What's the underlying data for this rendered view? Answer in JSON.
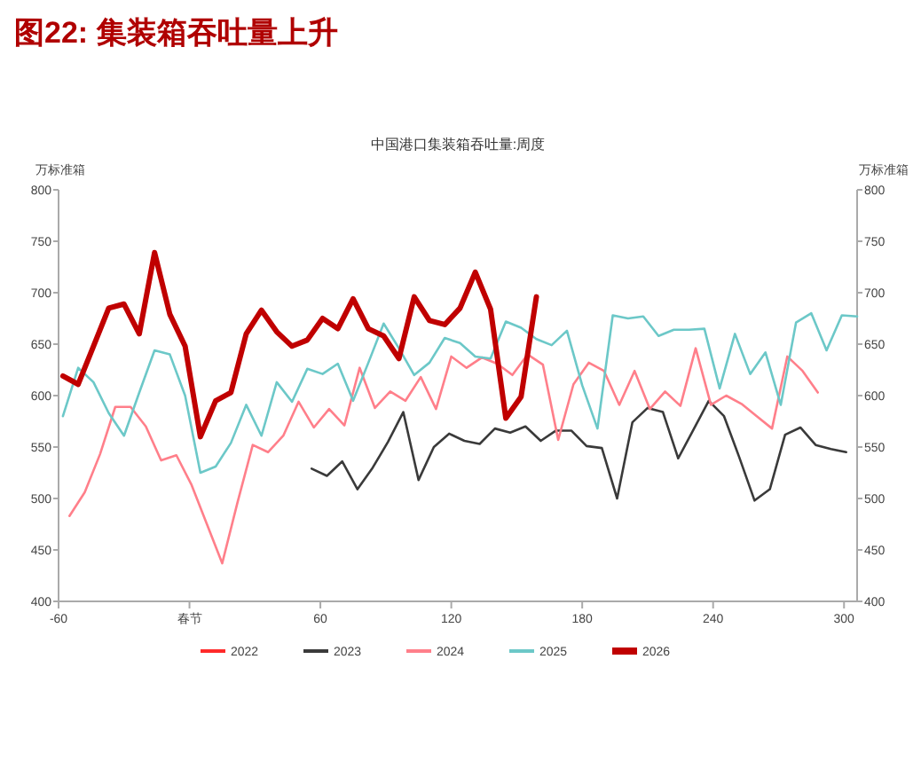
{
  "chart_data": {
    "type": "line",
    "title": "图22:  集装箱吞吐量上升",
    "subtitle": "中国港口集装箱吞吐量:周度",
    "ylabel": "万标准箱",
    "y2label": "万标准箱",
    "xlim": [
      -60,
      306
    ],
    "xticks": [
      -60,
      {
        "value": 0,
        "label": "春节"
      },
      60,
      120,
      180,
      240,
      300
    ],
    "ylim": [
      400,
      800
    ],
    "yticks": [
      400,
      450,
      500,
      550,
      600,
      650,
      700,
      750,
      800
    ],
    "y2lim": [
      400,
      800
    ],
    "y2ticks": [
      400,
      450,
      500,
      550,
      600,
      650,
      700,
      750,
      800
    ],
    "grid": false,
    "legend": "bottom",
    "marker": "none",
    "line_style": "solid",
    "series": [
      {
        "name": "2022",
        "color": "#ff2a2a"
      },
      {
        "name": "2023",
        "color": "#3a3a3a",
        "x": [
          56,
          63,
          70,
          77,
          84,
          91,
          98,
          105,
          112,
          119,
          126,
          133,
          140,
          147,
          154,
          161,
          168,
          175,
          182,
          189,
          196,
          203,
          210,
          217,
          224,
          231,
          238,
          245,
          252,
          259,
          266,
          273,
          280,
          287,
          294,
          301
        ],
        "values": [
          529,
          522,
          536,
          509,
          530,
          555,
          584,
          518,
          550,
          563,
          556,
          553,
          568,
          564,
          570,
          556,
          566,
          566,
          551,
          549,
          500,
          574,
          588,
          584,
          539,
          567,
          595,
          580,
          540,
          498,
          509,
          562,
          569,
          552,
          548,
          545
        ]
      },
      {
        "name": "2024",
        "color": "#ff7f8a",
        "x": [
          -55,
          -48,
          -41,
          -34,
          -27,
          -20,
          -13,
          -6,
          1,
          8,
          15,
          22,
          29,
          36,
          43,
          50,
          57,
          64,
          71,
          78,
          85,
          92,
          99,
          106,
          113,
          120,
          127,
          134,
          141,
          148,
          155,
          162,
          169,
          176,
          183,
          190,
          197,
          204,
          211,
          218,
          225,
          232,
          239,
          246,
          253,
          260,
          267,
          274,
          281,
          288
        ],
        "values": [
          483,
          506,
          543,
          589,
          589,
          570,
          537,
          542,
          513,
          475,
          437,
          496,
          552,
          545,
          561,
          594,
          569,
          587,
          571,
          627,
          588,
          604,
          595,
          618,
          587,
          638,
          627,
          637,
          631,
          620,
          640,
          630,
          557,
          611,
          632,
          624,
          591,
          624,
          587,
          604,
          590,
          646,
          591,
          600,
          592,
          580,
          568,
          638,
          624,
          603
        ]
      },
      {
        "name": "2025",
        "color": "#6cc8c8",
        "x": [
          -58,
          -51,
          -44,
          -37,
          -30,
          -23,
          -16,
          -9,
          -2,
          5,
          12,
          19,
          26,
          33,
          40,
          47,
          54,
          61,
          68,
          75,
          82,
          89,
          96,
          103,
          110,
          117,
          124,
          131,
          138,
          145,
          152,
          159,
          166,
          173,
          180,
          187,
          194,
          201,
          208,
          215,
          222,
          229,
          236,
          243,
          250,
          257,
          264,
          271,
          278,
          285,
          292,
          299,
          306
        ],
        "values": [
          580,
          627,
          613,
          583,
          561,
          603,
          644,
          640,
          600,
          525,
          531,
          554,
          591,
          561,
          613,
          594,
          626,
          621,
          631,
          595,
          632,
          670,
          646,
          620,
          632,
          656,
          651,
          638,
          636,
          672,
          666,
          655,
          649,
          663,
          610,
          568,
          678,
          675,
          677,
          658,
          664,
          664,
          665,
          607,
          660,
          621,
          642,
          591,
          671,
          680,
          644,
          678,
          677
        ]
      },
      {
        "name": "2026",
        "color": "#c00000",
        "x": [
          -58,
          -51,
          -44,
          -37,
          -30,
          -23,
          -16,
          -9,
          -2,
          5,
          12,
          19,
          26,
          33,
          40,
          47,
          54,
          61,
          68,
          75,
          82,
          89,
          96,
          103,
          110,
          117,
          124,
          131,
          138,
          145,
          152,
          159
        ],
        "values": [
          619,
          611,
          648,
          685,
          689,
          660,
          739,
          679,
          648,
          560,
          595,
          603,
          660,
          683,
          662,
          648,
          654,
          675,
          665,
          694,
          665,
          658,
          636,
          696,
          673,
          669,
          685,
          720,
          684,
          578,
          599,
          696
        ]
      }
    ]
  }
}
